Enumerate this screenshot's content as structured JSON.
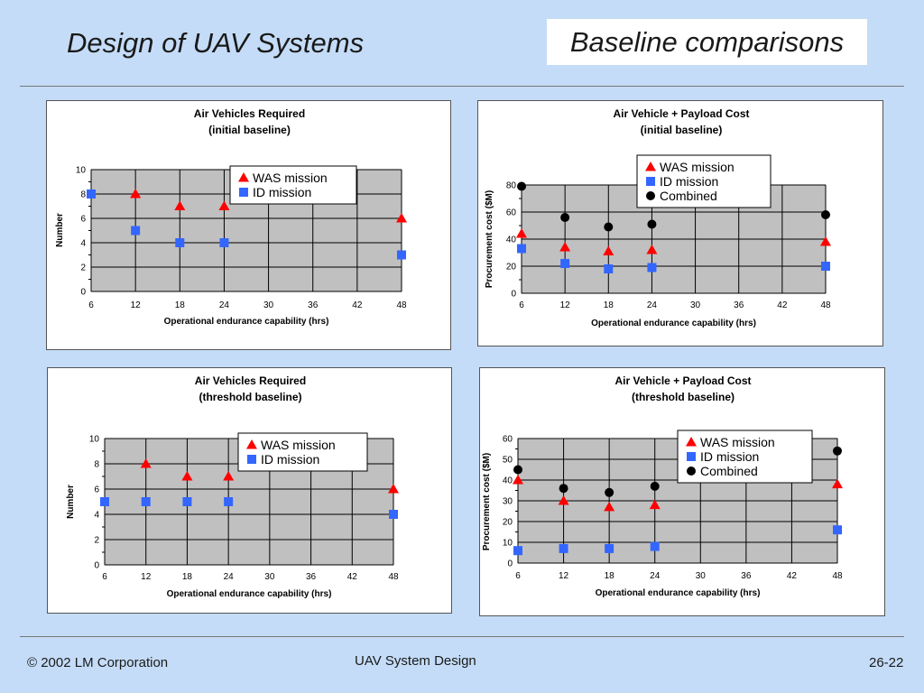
{
  "header": {
    "title": "Design of UAV Systems",
    "section": "Baseline comparisons"
  },
  "footer": {
    "copyright": "© 2002 LM Corporation",
    "center": "UAV System Design",
    "page": "26-22"
  },
  "colors": {
    "background": "#c4dcf7",
    "plot_area": "#c0c0c0",
    "was": "#ff0000",
    "id": "#3366ff",
    "combined": "#000000"
  },
  "chart_data": [
    {
      "type": "scatter",
      "title": [
        "Air Vehicles Required",
        "(initial baseline)"
      ],
      "xlabel": "Operational endurance capability (hrs)",
      "ylabel": "Number",
      "xlim": [
        6,
        48
      ],
      "xticks": [
        6,
        12,
        18,
        24,
        30,
        36,
        42,
        48
      ],
      "ylim": [
        0,
        10
      ],
      "yticks": [
        0,
        2,
        4,
        6,
        8,
        10
      ],
      "grid": true,
      "legend": "top-center",
      "series": [
        {
          "name": "WAS mission",
          "marker": "triangle",
          "color": "#ff0000",
          "x": [
            12,
            18,
            24,
            48
          ],
          "y": [
            8,
            7,
            7,
            6
          ]
        },
        {
          "name": "ID mission",
          "marker": "square",
          "color": "#3366ff",
          "x": [
            6,
            12,
            18,
            24,
            48
          ],
          "y": [
            8,
            5,
            4,
            4,
            3
          ]
        }
      ]
    },
    {
      "type": "scatter",
      "title": [
        "Air Vehicle + Payload Cost",
        "(initial baseline)"
      ],
      "xlabel": "Operational endurance capability (hrs)",
      "ylabel": "Procurement cost ($M)",
      "xlim": [
        6,
        48
      ],
      "xticks": [
        6,
        12,
        18,
        24,
        30,
        36,
        42,
        48
      ],
      "ylim": [
        0,
        80
      ],
      "yticks": [
        0,
        20,
        40,
        60,
        80
      ],
      "grid": true,
      "legend": "top-center",
      "series": [
        {
          "name": "WAS mission",
          "marker": "triangle",
          "color": "#ff0000",
          "x": [
            6,
            12,
            18,
            24,
            48
          ],
          "y": [
            44,
            34,
            31,
            32,
            38
          ]
        },
        {
          "name": "ID mission",
          "marker": "square",
          "color": "#3366ff",
          "x": [
            6,
            12,
            18,
            24,
            48
          ],
          "y": [
            33,
            22,
            18,
            19,
            20
          ]
        },
        {
          "name": "Combined",
          "marker": "circle",
          "color": "#000000",
          "x": [
            6,
            12,
            18,
            24,
            48
          ],
          "y": [
            79,
            56,
            49,
            51,
            58
          ]
        }
      ]
    },
    {
      "type": "scatter",
      "title": [
        "Air Vehicles Required",
        "(threshold baseline)"
      ],
      "xlabel": "Operational endurance capability (hrs)",
      "ylabel": "Number",
      "xlim": [
        6,
        48
      ],
      "xticks": [
        6,
        12,
        18,
        24,
        30,
        36,
        42,
        48
      ],
      "ylim": [
        0,
        10
      ],
      "yticks": [
        0,
        2,
        4,
        6,
        8,
        10
      ],
      "grid": true,
      "legend": "top-center",
      "series": [
        {
          "name": "WAS mission",
          "marker": "triangle",
          "color": "#ff0000",
          "x": [
            12,
            18,
            24,
            48
          ],
          "y": [
            8,
            7,
            7,
            6
          ]
        },
        {
          "name": "ID mission",
          "marker": "square",
          "color": "#3366ff",
          "x": [
            6,
            12,
            18,
            24,
            48
          ],
          "y": [
            5,
            5,
            5,
            5,
            4
          ]
        }
      ]
    },
    {
      "type": "scatter",
      "title": [
        "Air Vehicle + Payload Cost",
        "(threshold baseline)"
      ],
      "xlabel": "Operational endurance capability (hrs)",
      "ylabel": "Procurement cost ($M)",
      "xlim": [
        6,
        48
      ],
      "xticks": [
        6,
        12,
        18,
        24,
        30,
        36,
        42,
        48
      ],
      "ylim": [
        0,
        60
      ],
      "yticks": [
        0,
        10,
        20,
        30,
        40,
        50,
        60
      ],
      "grid": true,
      "legend": "top-right",
      "series": [
        {
          "name": "WAS mission",
          "marker": "triangle",
          "color": "#ff0000",
          "x": [
            6,
            12,
            18,
            24,
            48
          ],
          "y": [
            40,
            30,
            27,
            28,
            38
          ]
        },
        {
          "name": "ID mission",
          "marker": "square",
          "color": "#3366ff",
          "x": [
            6,
            12,
            18,
            24,
            48
          ],
          "y": [
            6,
            7,
            7,
            8,
            16
          ]
        },
        {
          "name": "Combined",
          "marker": "circle",
          "color": "#000000",
          "x": [
            6,
            12,
            18,
            24,
            48
          ],
          "y": [
            45,
            36,
            34,
            37,
            54
          ]
        }
      ]
    }
  ]
}
